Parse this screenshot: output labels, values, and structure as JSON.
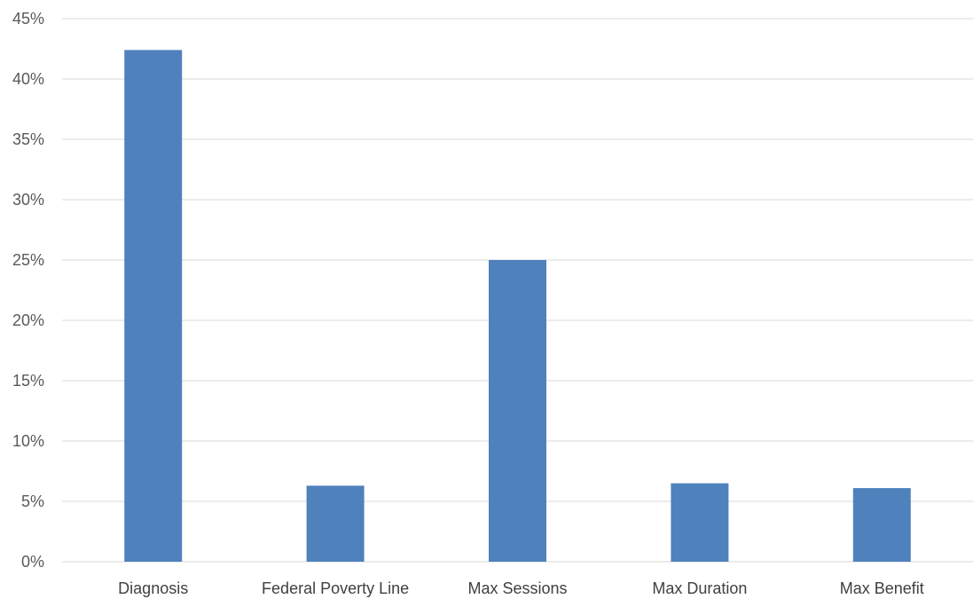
{
  "chart_data": {
    "type": "bar",
    "title": "",
    "xlabel": "",
    "ylabel": "",
    "categories": [
      "Diagnosis",
      "Federal Poverty Line",
      "Max Sessions",
      "Max Duration",
      "Max Benefit"
    ],
    "values": [
      42.4,
      6.3,
      25.0,
      6.5,
      6.1
    ],
    "ylim": [
      0,
      45
    ],
    "yticks": [
      0,
      5,
      10,
      15,
      20,
      25,
      30,
      35,
      40,
      45
    ],
    "ytick_labels": [
      "0%",
      "5%",
      "10%",
      "15%",
      "20%",
      "25%",
      "30%",
      "35%",
      "40%",
      "45%"
    ],
    "value_unit": "%",
    "grid": true,
    "legend": "none",
    "bar_color": "#4f81bd"
  }
}
